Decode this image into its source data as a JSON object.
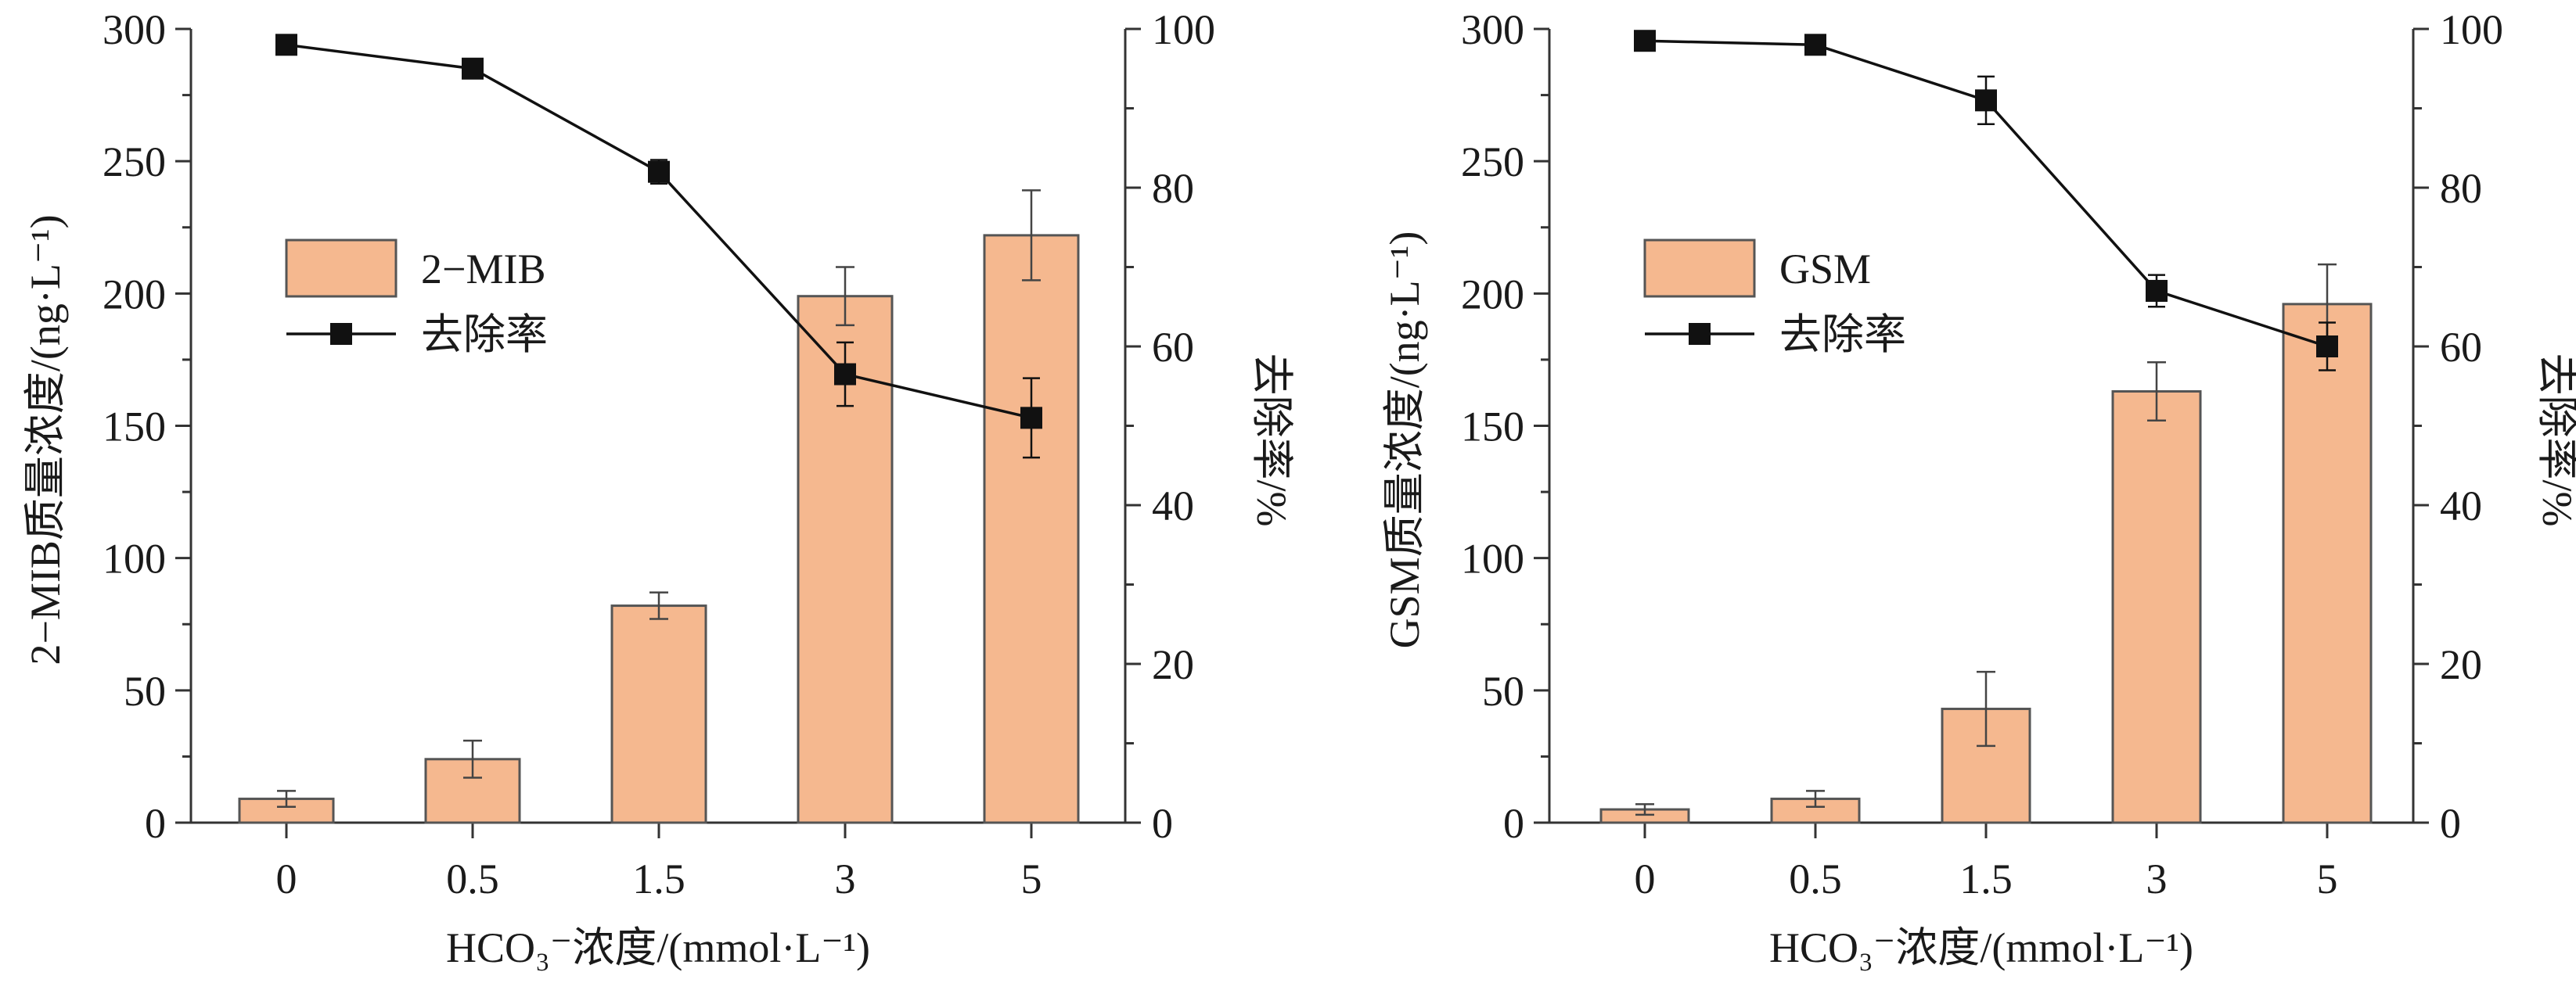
{
  "chart_data": [
    {
      "type": "bar",
      "categories": [
        "0",
        "0.5",
        "1.5",
        "3",
        "5"
      ],
      "series": [
        {
          "name": "2−MIB",
          "type": "bar",
          "axis": "left",
          "values": [
            9,
            24,
            82,
            199,
            222
          ],
          "errors": [
            3,
            7,
            5,
            11,
            17
          ]
        },
        {
          "name": "去除率",
          "type": "line",
          "axis": "right",
          "values": [
            98,
            95,
            82,
            56.5,
            51
          ],
          "errors": [
            1,
            1,
            1.5,
            4,
            5
          ]
        }
      ],
      "xlabel": "HCO₃⁻浓度/(mmol·L⁻¹)",
      "ylabel": "2−MIB质量浓度/(ng·L⁻¹)",
      "ylabel_right": "去除率/%",
      "ylim": [
        0,
        300
      ],
      "yticks": [
        "0",
        "50",
        "100",
        "150",
        "200",
        "250",
        "300"
      ],
      "ylim_right": [
        0,
        100
      ],
      "yticks_right": [
        "0",
        "20",
        "40",
        "60",
        "80",
        "100"
      ],
      "legend_position": "upper-left",
      "grid": false
    },
    {
      "type": "bar",
      "categories": [
        "0",
        "0.5",
        "1.5",
        "3",
        "5"
      ],
      "series": [
        {
          "name": "GSM",
          "type": "bar",
          "axis": "left",
          "values": [
            5,
            9,
            43,
            163,
            196
          ],
          "errors": [
            2,
            3,
            14,
            11,
            15
          ]
        },
        {
          "name": "去除率",
          "type": "line",
          "axis": "right",
          "values": [
            98.5,
            98,
            91,
            67,
            60
          ],
          "errors": [
            0.5,
            0.5,
            3,
            2,
            3
          ]
        }
      ],
      "xlabel": "HCO₃⁻浓度/(mmol·L⁻¹)",
      "ylabel": "GSM质量浓度/(ng·L⁻¹)",
      "ylabel_right": "去除率/%",
      "ylim": [
        0,
        300
      ],
      "yticks": [
        "0",
        "50",
        "100",
        "150",
        "200",
        "250",
        "300"
      ],
      "ylim_right": [
        0,
        100
      ],
      "yticks_right": [
        "0",
        "20",
        "40",
        "60",
        "80",
        "100"
      ],
      "legend_position": "upper-left",
      "grid": false
    }
  ],
  "colors": {
    "bar_fill": "#f5b88f",
    "bar_edge": "#555555",
    "line": "#111111",
    "marker": "#111111",
    "axis": "#333333",
    "text": "#1a1a1a"
  }
}
